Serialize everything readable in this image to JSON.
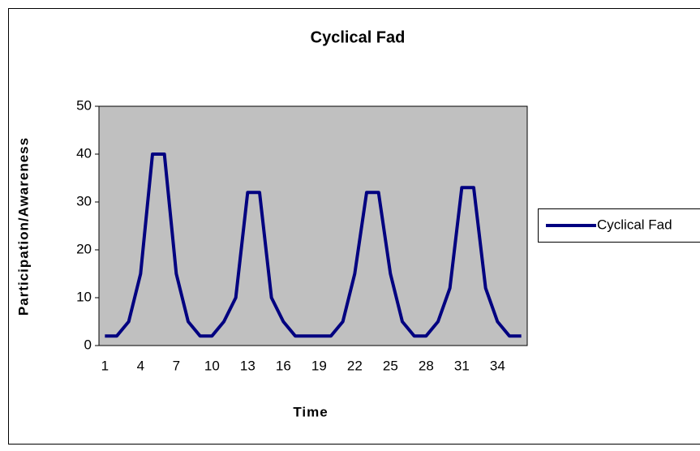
{
  "chart_data": {
    "type": "line",
    "title": "Cyclical Fad",
    "x_label": "Time",
    "y_label": "Participation/Awareness",
    "categories": [
      1,
      null,
      null,
      4,
      null,
      null,
      7,
      null,
      null,
      10,
      null,
      null,
      13,
      null,
      null,
      16,
      null,
      null,
      19,
      null,
      null,
      22,
      null,
      null,
      25,
      null,
      null,
      28,
      null,
      null,
      31,
      null,
      null,
      34,
      null,
      null
    ],
    "series": [
      {
        "name": "Cyclical Fad",
        "color": "#000080",
        "values": [
          2,
          2,
          5,
          15,
          40,
          40,
          15,
          5,
          2,
          2,
          5,
          10,
          32,
          32,
          10,
          5,
          2,
          2,
          2,
          2,
          5,
          15,
          32,
          32,
          15,
          5,
          2,
          2,
          5,
          12,
          33,
          33,
          12,
          5,
          2,
          2
        ]
      }
    ],
    "ylim": [
      0,
      50
    ],
    "yticks": [
      0,
      10,
      20,
      30,
      40,
      50
    ],
    "plot_background": "#c0c0c0",
    "legend": "right"
  }
}
